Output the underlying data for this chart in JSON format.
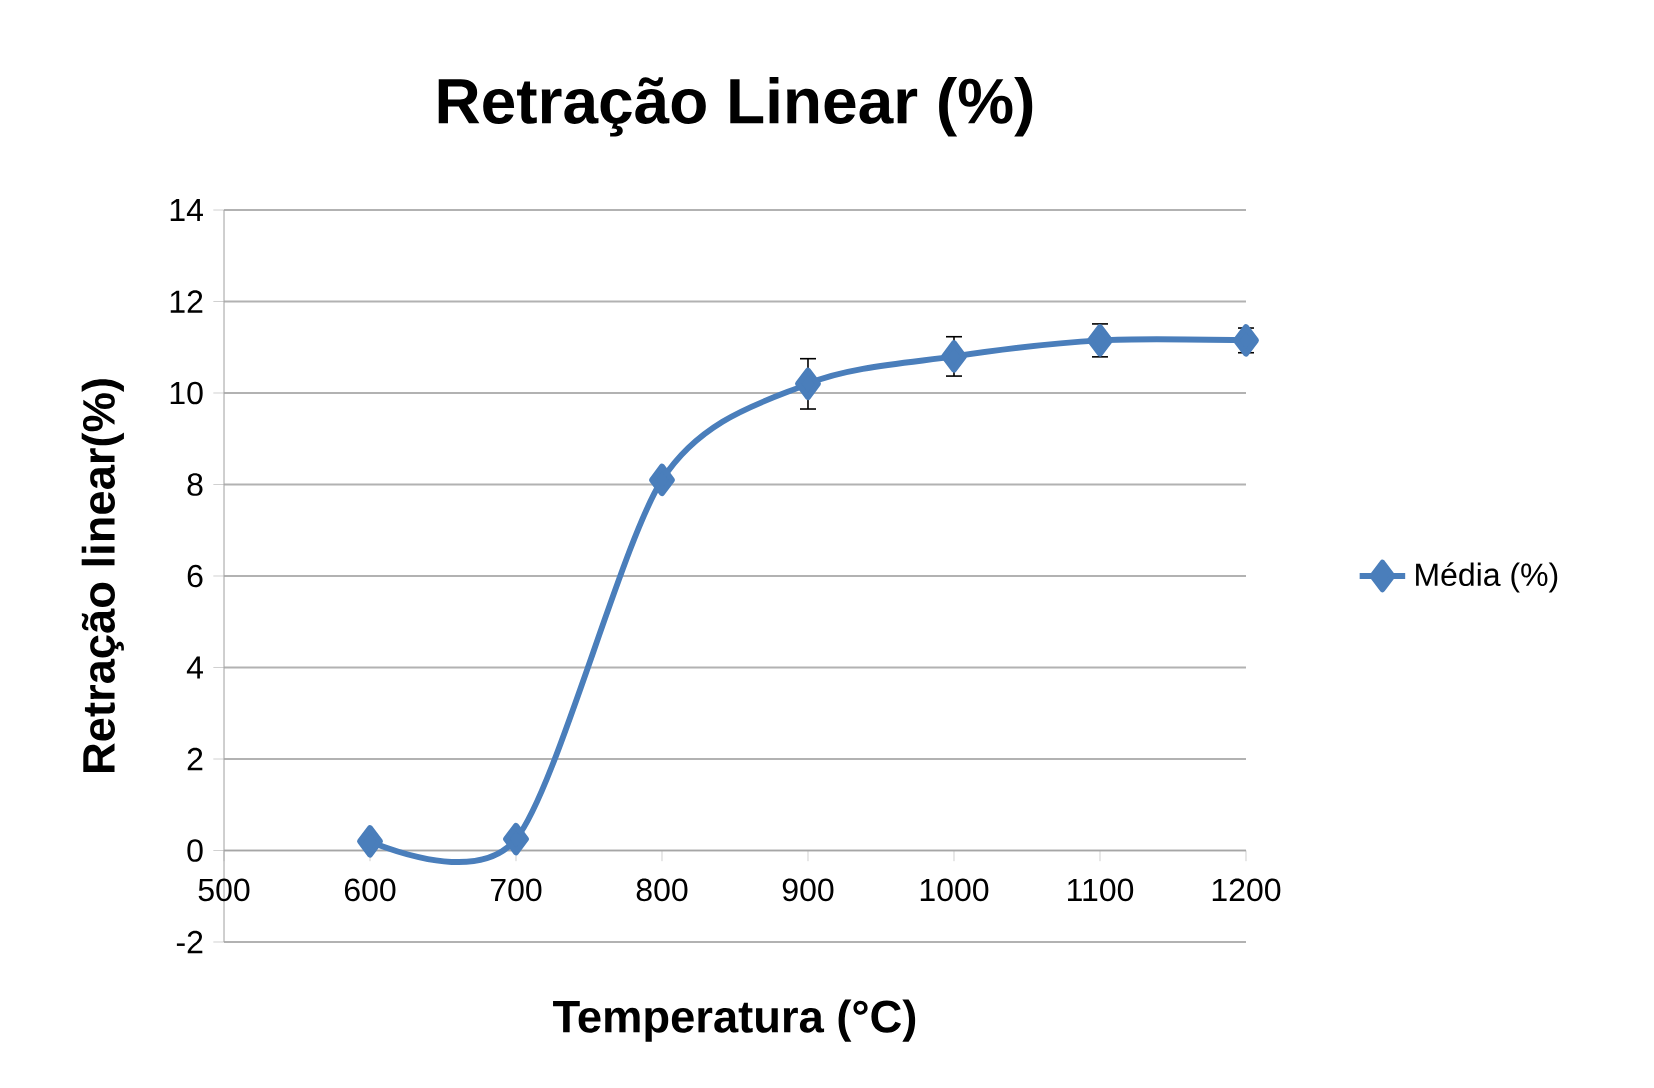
{
  "chart_data": {
    "type": "line",
    "title": "Retração Linear (%)",
    "xlabel": "Temperatura (°C)",
    "ylabel": "Retração linear(%)",
    "x": [
      600,
      700,
      800,
      900,
      1000,
      1100,
      1200
    ],
    "series": [
      {
        "name": "Média (%)",
        "color": "#4a7ebb",
        "values": [
          0.2,
          0.25,
          8.1,
          10.2,
          10.8,
          11.15,
          11.15
        ],
        "errors": [
          null,
          null,
          null,
          0.55,
          0.43,
          0.36,
          0.27
        ]
      }
    ],
    "xlim": [
      500,
      1200
    ],
    "xticks": [
      500,
      600,
      700,
      800,
      900,
      1000,
      1100,
      1200
    ],
    "ylim": [
      -2,
      14
    ],
    "yticks": [
      -2,
      0,
      2,
      4,
      6,
      8,
      10,
      12,
      14
    ],
    "grid": "y",
    "legend": "right",
    "marker": "diamond",
    "line_style": "solid"
  }
}
